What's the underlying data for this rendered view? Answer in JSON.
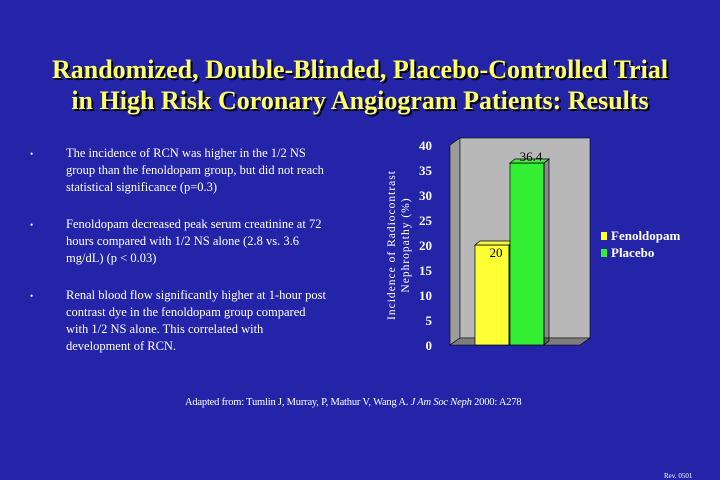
{
  "slide": {
    "title_line1": "Randomized, Double-Blinded, Placebo-Controlled Trial",
    "title_line2": "in High Risk Coronary Angiogram Patients:  Results",
    "title_color": "#ffff66",
    "background_color": "#2424a8",
    "bullet_glyph": "•",
    "bullets": [
      "The incidence of RCN was higher in the 1/2 NS group than the fenoldopam group, but did not reach statistical significance (p=0.3)",
      "Fenoldopam decreased peak serum creatinine at 72 hours compared with 1/2 NS alone (2.8 vs. 3.6 mg/dL) (p < 0.03)",
      "Renal blood flow significantly higher at 1-hour post contrast dye in the fenoldopam group compared with 1/2 NS alone.  This correlated with development of RCN."
    ],
    "source_prefix": "Adapted from: Tumlin J, Murray, P, Mathur V, Wang A.",
    "source_journal": "J Am Soc Neph",
    "source_suffix": "2000: A278",
    "rev": "Rev. 0501"
  },
  "chart_data": {
    "type": "bar",
    "title": "",
    "ylabel_line1": "Incidence of Radiocontrast",
    "ylabel_line2": "Nephropathy (%)",
    "ylim": [
      0,
      40
    ],
    "yticks": [
      0,
      5,
      10,
      15,
      20,
      25,
      30,
      35,
      40
    ],
    "grid": false,
    "legend_position": "right",
    "series": [
      {
        "name": "Fenoldopam",
        "value": 20,
        "label": "20",
        "color": "#ffff33"
      },
      {
        "name": "Placebo",
        "value": 36.4,
        "label": "36.4",
        "color": "#33ee33"
      }
    ]
  }
}
